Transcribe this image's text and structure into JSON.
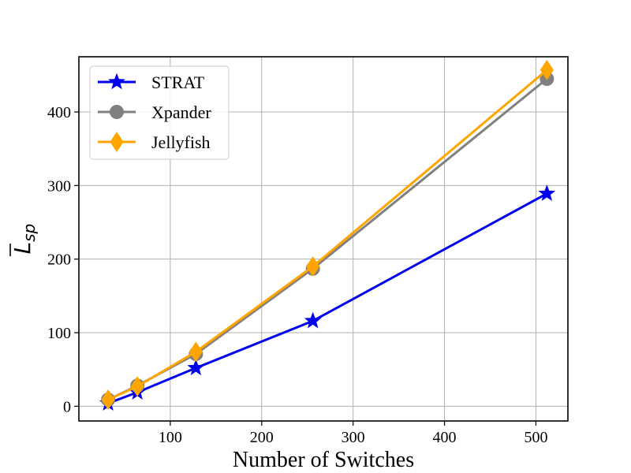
{
  "chart_data": {
    "type": "line",
    "title": "",
    "xlabel": "Number of Switches",
    "ylabel": {
      "main": "L",
      "sub": "sp"
    },
    "xlim": [
      0,
      535
    ],
    "ylim": [
      -20,
      475
    ],
    "xticks": [
      100,
      200,
      300,
      400,
      500
    ],
    "yticks": [
      0,
      100,
      200,
      300,
      400
    ],
    "grid": true,
    "legend_position": "top-left",
    "x": [
      32,
      64,
      128,
      256,
      512
    ],
    "series": [
      {
        "name": "STRAT",
        "color": "#0000ee",
        "marker": "star",
        "values": [
          4,
          19,
          52,
          116,
          289
        ]
      },
      {
        "name": "Xpander",
        "color": "#808080",
        "marker": "circle",
        "values": [
          9,
          28,
          71,
          187,
          445
        ]
      },
      {
        "name": "Jellyfish",
        "color": "#ffa500",
        "marker": "diamond",
        "values": [
          9,
          27,
          74,
          190,
          457
        ]
      }
    ]
  }
}
